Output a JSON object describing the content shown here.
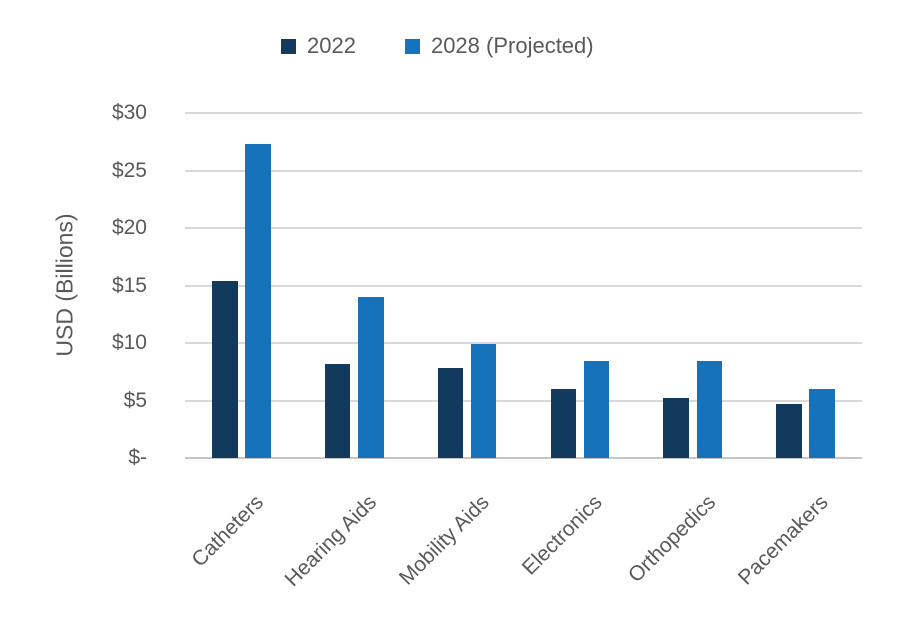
{
  "chart_data": {
    "type": "bar",
    "title": "",
    "xlabel": "",
    "ylabel": "USD (Billions)",
    "categories": [
      "Catheters",
      "Hearing Aids",
      "Mobility Aids",
      "Electronics",
      "Orthopedics",
      "Pacemakers"
    ],
    "series": [
      {
        "name": "2022",
        "color": "#123A5E",
        "values": [
          15.4,
          8.2,
          7.8,
          6.0,
          5.2,
          4.7
        ]
      },
      {
        "name": "2028 (Projected)",
        "color": "#1572BB",
        "values": [
          27.3,
          14.0,
          9.9,
          8.4,
          8.4,
          6.0
        ]
      }
    ],
    "ylim": [
      0,
      30
    ],
    "yticks": [
      {
        "value": 0,
        "label": "$-"
      },
      {
        "value": 5,
        "label": "$5"
      },
      {
        "value": 10,
        "label": "$10"
      },
      {
        "value": 15,
        "label": "$15"
      },
      {
        "value": 20,
        "label": "$20"
      },
      {
        "value": 25,
        "label": "$25"
      },
      {
        "value": 30,
        "label": "$30"
      }
    ],
    "grid": true,
    "legend_position": "top"
  },
  "colors": {
    "background": "#FFFFFF",
    "text": "#595959",
    "gridline": "#D9D9D9",
    "axis_line": "#C6C6C6"
  }
}
